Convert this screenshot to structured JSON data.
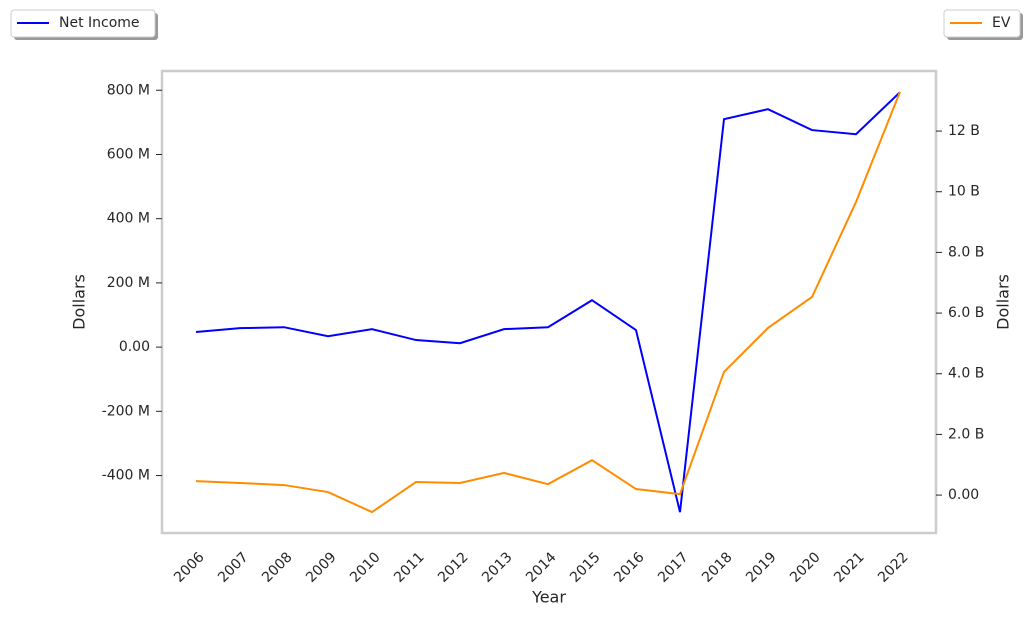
{
  "chart_data": {
    "type": "line",
    "x_label": "Year",
    "y_label": "Dollars",
    "y2_label": "Dollars",
    "categories": [
      "2006",
      "2007",
      "2008",
      "2009",
      "2010",
      "2011",
      "2012",
      "2013",
      "2014",
      "2015",
      "2016",
      "2017",
      "2018",
      "2019",
      "2020",
      "2021",
      "2022"
    ],
    "series": [
      {
        "name": "Net Income",
        "color": "#0000ff",
        "values": [
          47000000,
          59000000,
          62000000,
          34000000,
          56000000,
          22000000,
          12000000,
          56000000,
          62000000,
          146000000,
          53000000,
          -514000000,
          710000000,
          741000000,
          676000000,
          663000000,
          794000000
        ]
      },
      {
        "name": "EV",
        "color": "#ff8c00",
        "axis": "y2",
        "values": [
          460000000,
          400000000,
          330000000,
          100000000,
          -560000000,
          430000000,
          400000000,
          730000000,
          360000000,
          1150000000,
          200000000,
          30000000,
          4060000000,
          5510000000,
          6530000000,
          9660000000,
          13290000000
        ]
      }
    ],
    "ylim": [
      -579000000,
      860000000
    ],
    "yticks": [
      {
        "value": -400000000,
        "label": "-400 M"
      },
      {
        "value": -200000000,
        "label": "-200 M"
      },
      {
        "value": 0,
        "label": "0.00"
      },
      {
        "value": 200000000,
        "label": "200 M"
      },
      {
        "value": 400000000,
        "label": "400 M"
      },
      {
        "value": 600000000,
        "label": "600 M"
      },
      {
        "value": 800000000,
        "label": "800 M"
      }
    ],
    "y2lim": [
      -1250000000,
      13980000000
    ],
    "y2ticks": [
      {
        "value": 0,
        "label": "0.00"
      },
      {
        "value": 2000000000,
        "label": "2.0 B"
      },
      {
        "value": 4000000000,
        "label": "4.0 B"
      },
      {
        "value": 6000000000,
        "label": "6.0 B"
      },
      {
        "value": 8000000000,
        "label": "8.0 B"
      },
      {
        "value": 10000000000,
        "label": "10 B"
      },
      {
        "value": 12000000000,
        "label": "12 B"
      }
    ]
  }
}
